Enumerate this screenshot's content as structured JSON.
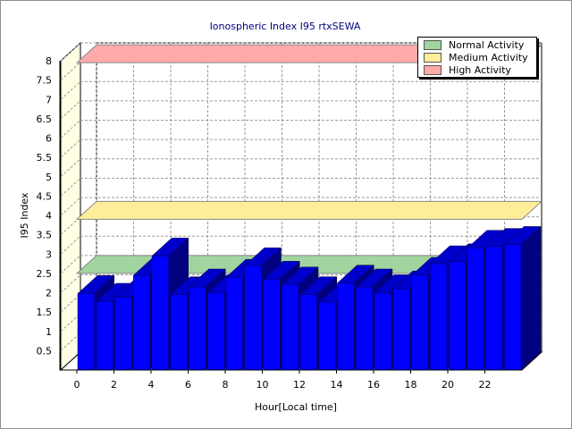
{
  "chart_data": {
    "type": "bar",
    "title": "Ionospheric Index I95 rtxSEWA",
    "xlabel": "Hour[Local time]",
    "ylabel": "I95 Index",
    "ylim": [
      0,
      8
    ],
    "y_ticks": [
      "0.5",
      "1",
      "1.5",
      "2",
      "2.5",
      "3",
      "3.5",
      "4",
      "4.5",
      "5",
      "5.5",
      "6",
      "6.5",
      "7",
      "7.5",
      "8"
    ],
    "x_ticks": [
      "0",
      "2",
      "4",
      "6",
      "8",
      "10",
      "12",
      "14",
      "16",
      "18",
      "20",
      "22"
    ],
    "grid": true,
    "three_d": true,
    "bar_color": "#0000ff",
    "series": [
      {
        "values": [
          1.98,
          1.78,
          1.88,
          2.45,
          2.95,
          1.95,
          2.15,
          2.0,
          2.4,
          2.7,
          2.35,
          2.2,
          1.95,
          1.75,
          2.25,
          2.15,
          2.0,
          2.1,
          2.45,
          2.75,
          2.8,
          3.15,
          3.2,
          3.25
        ]
      }
    ],
    "activity_bands": [
      {
        "label": "Normal Activity",
        "from": 0,
        "to": 2.5,
        "color": "#a0d4a0"
      },
      {
        "label": "Medium Activity",
        "from": 3.9,
        "to": 3.95,
        "color": "#ffee99"
      },
      {
        "label": "High Activity",
        "from": 7.95,
        "to": 8,
        "color": "#ffaaaa"
      }
    ],
    "legend_position": "top-right",
    "colors": {
      "back_wall": "#ffffe4",
      "grid": "#9a9a9a",
      "bar_side": "#000080",
      "bar_top": "#0000cc"
    }
  }
}
